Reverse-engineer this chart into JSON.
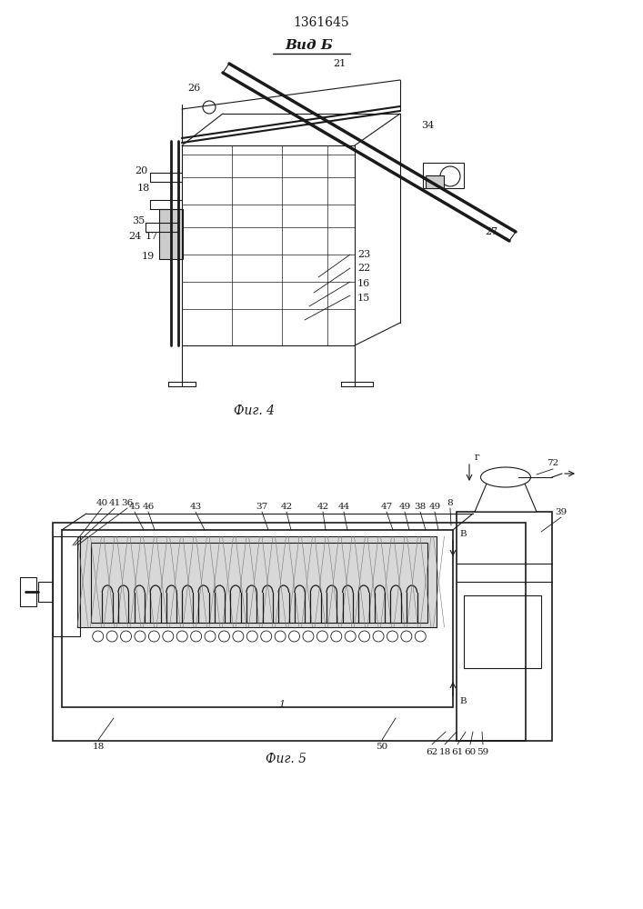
{
  "title": "1361645",
  "fig4_label": "Фиг. 4",
  "fig5_label": "Фиг. 5",
  "view_label": "Вид Б",
  "bg_color": "#ffffff",
  "line_color": "#1a1a1a",
  "line_width": 0.8
}
